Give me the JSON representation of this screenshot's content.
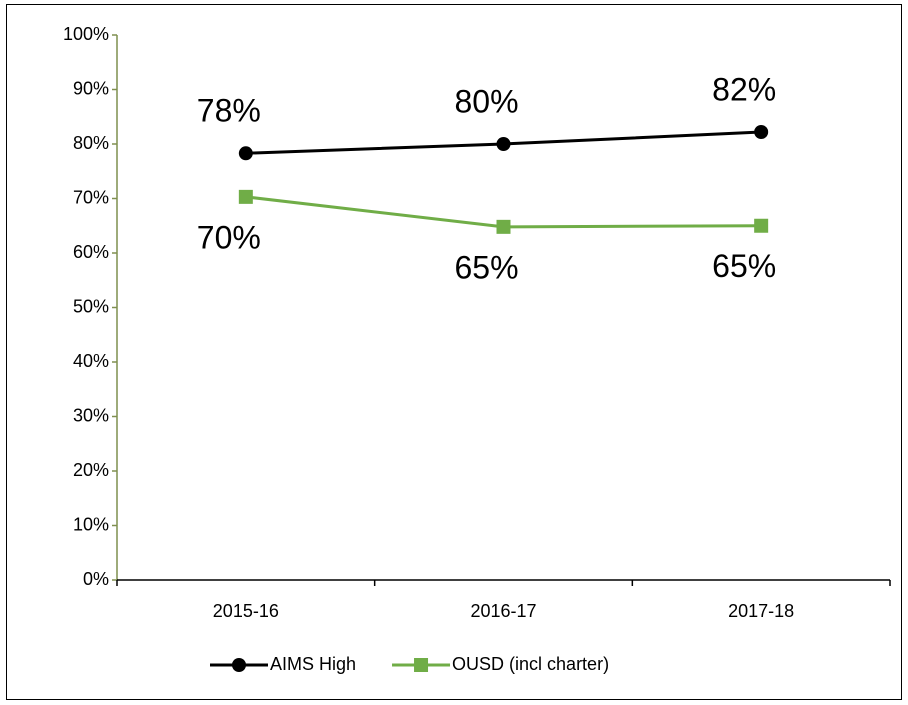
{
  "chart_data": {
    "type": "line",
    "categories": [
      "2015-16",
      "2016-17",
      "2017-18"
    ],
    "series": [
      {
        "name": "AIMS High",
        "color": "#000000",
        "marker": "circle",
        "values": [
          78.3,
          80.0,
          82.2
        ],
        "value_labels": [
          "78%",
          "80%",
          "82%"
        ],
        "label_position": "above"
      },
      {
        "name": "OUSD (incl charter)",
        "color": "#70ad47",
        "marker": "square",
        "values": [
          70.3,
          64.8,
          65.0
        ],
        "value_labels": [
          "70%",
          "65%",
          "65%"
        ],
        "label_position": "below"
      }
    ],
    "ylim": [
      0,
      100
    ],
    "yticks": [
      {
        "value": 0,
        "label": "0%"
      },
      {
        "value": 10,
        "label": "10%"
      },
      {
        "value": 20,
        "label": "20%"
      },
      {
        "value": 30,
        "label": "30%"
      },
      {
        "value": 40,
        "label": "40%"
      },
      {
        "value": 50,
        "label": "50%"
      },
      {
        "value": 60,
        "label": "60%"
      },
      {
        "value": 70,
        "label": "70%"
      },
      {
        "value": 80,
        "label": "80%"
      },
      {
        "value": 90,
        "label": "90%"
      },
      {
        "value": 100,
        "label": "100%"
      }
    ],
    "grid": false,
    "legend": "bottom"
  }
}
